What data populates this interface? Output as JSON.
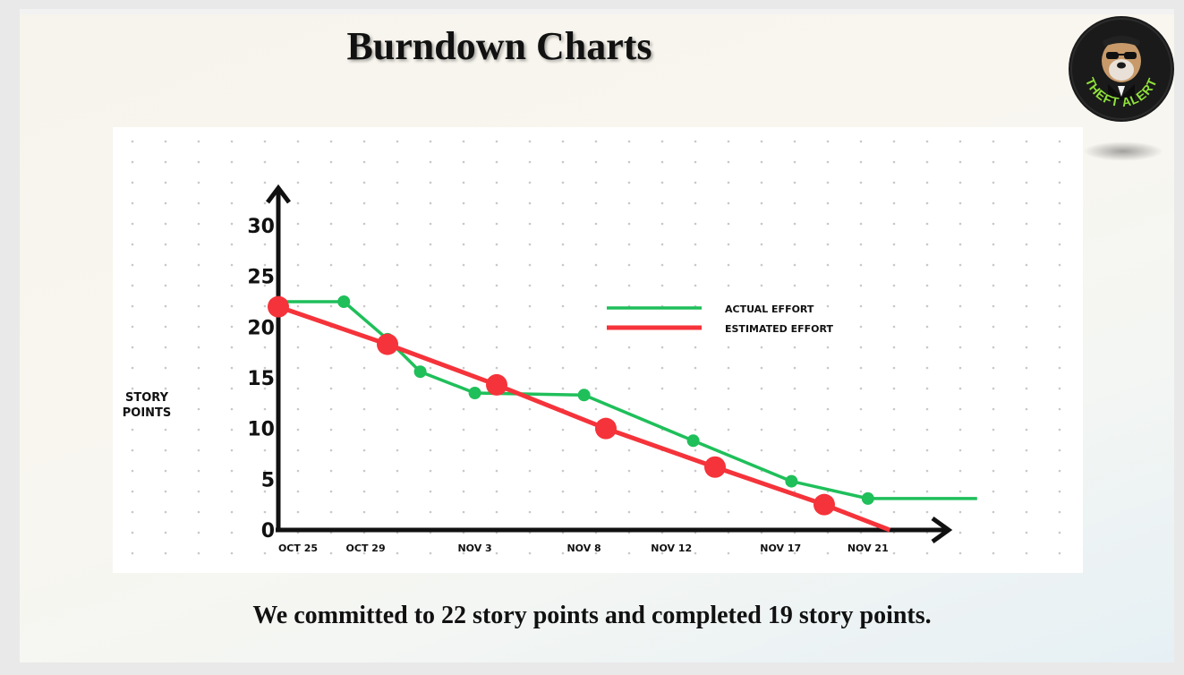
{
  "slide": {
    "title": "Burndown Charts",
    "caption": "We committed to 22 story points and completed 19 story points.",
    "logo": {
      "icon": "bulldog-logo-icon",
      "text": "THEFT ALERT"
    }
  },
  "colors": {
    "actual": "#1fbf5a",
    "estimated": "#f5333a",
    "axis": "#111111",
    "grid_dot": "#c8c8c8"
  },
  "chart_data": {
    "type": "line",
    "title": "",
    "ylabel": "STORY POINTS",
    "xlabel": "",
    "ylim": [
      0,
      30
    ],
    "y_ticks": [
      0,
      5,
      10,
      15,
      20,
      25,
      30
    ],
    "x_ticks": [
      "OCT 25",
      "OCT 29",
      "NOV 3",
      "NOV 8",
      "NOV 12",
      "NOV 17",
      "NOV 21"
    ],
    "x_tick_days": [
      0,
      4,
      9,
      14,
      18,
      23,
      27
    ],
    "legend": {
      "position": "top-right",
      "entries": [
        "ACTUAL EFFORT",
        "ESTIMATED EFFORT"
      ]
    },
    "grid": "dotted",
    "series": [
      {
        "name": "ACTUAL EFFORT",
        "color": "#1fbf5a",
        "points": [
          {
            "day": 0,
            "value": 22.5
          },
          {
            "day": 3,
            "value": 22.5
          },
          {
            "day": 5,
            "value": 18.8
          },
          {
            "day": 6.5,
            "value": 15.6
          },
          {
            "day": 9,
            "value": 13.5
          },
          {
            "day": 14,
            "value": 13.3
          },
          {
            "day": 19,
            "value": 8.8
          },
          {
            "day": 23.5,
            "value": 4.8
          },
          {
            "day": 27,
            "value": 3.1
          },
          {
            "day": 32,
            "value": 3.1
          }
        ],
        "marked": [
          false,
          true,
          true,
          true,
          true,
          true,
          true,
          true,
          true,
          false
        ]
      },
      {
        "name": "ESTIMATED EFFORT",
        "color": "#f5333a",
        "points": [
          {
            "day": 0,
            "value": 22
          },
          {
            "day": 5,
            "value": 18.3
          },
          {
            "day": 10,
            "value": 14.3
          },
          {
            "day": 15,
            "value": 10
          },
          {
            "day": 20,
            "value": 6.2
          },
          {
            "day": 25,
            "value": 2.5
          },
          {
            "day": 28,
            "value": 0
          }
        ],
        "marked": [
          true,
          true,
          true,
          true,
          true,
          true,
          false
        ]
      }
    ]
  }
}
